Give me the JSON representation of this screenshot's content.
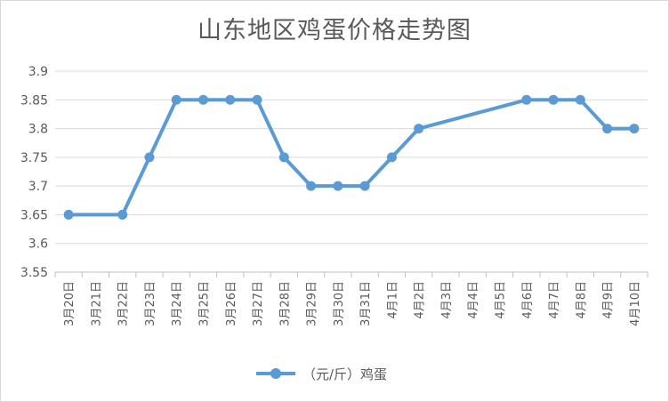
{
  "chart_data": {
    "type": "line",
    "title": "山东地区鸡蛋价格走势图",
    "categories": [
      "3月20日",
      "3月21日",
      "3月22日",
      "3月23日",
      "3月24日",
      "3月25日",
      "3月26日",
      "3月27日",
      "3月28日",
      "3月29日",
      "3月30日",
      "3月31日",
      "4月1日",
      "4月2日",
      "4月3日",
      "4月4日",
      "4月5日",
      "4月6日",
      "4月7日",
      "4月8日",
      "4月9日",
      "4月10日"
    ],
    "series": [
      {
        "name": "（元/斤）鸡蛋",
        "values": [
          3.65,
          null,
          3.65,
          3.75,
          3.85,
          3.85,
          3.85,
          3.85,
          3.75,
          3.7,
          3.7,
          3.7,
          3.75,
          3.8,
          null,
          null,
          null,
          3.85,
          3.85,
          3.85,
          3.8,
          3.8
        ],
        "color": "#5b9bd5"
      }
    ],
    "yticks": [
      "3.55",
      "3.6",
      "3.65",
      "3.7",
      "3.75",
      "3.8",
      "3.85",
      "3.9"
    ],
    "ylim": [
      3.55,
      3.9
    ],
    "grid": true,
    "legend": "bottom",
    "xlabel": "",
    "ylabel": ""
  }
}
